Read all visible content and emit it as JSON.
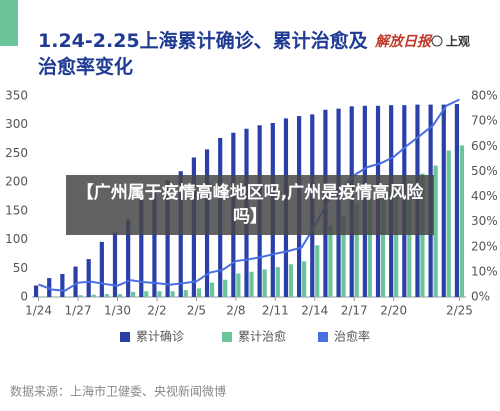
{
  "chart_data": {
    "type": "bar_line",
    "title": "1.24-2.25上海累计确诊、累计治愈及治愈率变化",
    "logos": [
      "解放日报",
      "上观"
    ],
    "source": "数据来源：上海市卫健委、央视新闻微博",
    "categories": [
      "1/24",
      null,
      null,
      "1/27",
      null,
      null,
      "1/30",
      null,
      null,
      "2/2",
      null,
      null,
      "2/5",
      null,
      null,
      "2/8",
      null,
      null,
      "2/11",
      null,
      null,
      "2/14",
      null,
      null,
      "2/17",
      null,
      null,
      "2/20",
      null,
      null,
      null,
      null,
      "2/25"
    ],
    "series": [
      {
        "name": "累计确诊",
        "color": "#2b3fa8",
        "type": "bar",
        "values": [
          20,
          33,
          40,
          53,
          66,
          96,
          112,
          135,
          169,
          182,
          203,
          219,
          243,
          257,
          277,
          286,
          293,
          299,
          303,
          311,
          315,
          318,
          326,
          328,
          332,
          333,
          333,
          334,
          334,
          335,
          335,
          335,
          336
        ]
      },
      {
        "name": "累计治愈",
        "color": "#6cc59a",
        "type": "bar",
        "values": [
          1,
          1,
          1,
          3,
          4,
          5,
          5,
          9,
          10,
          10,
          10,
          12,
          15,
          25,
          30,
          41,
          44,
          48,
          52,
          57,
          62,
          90,
          124,
          141,
          161,
          172,
          177,
          186,
          201,
          215,
          229,
          255,
          264
        ]
      },
      {
        "name": "治愈率",
        "color": "#4a6fe3",
        "type": "line",
        "axis": "y2",
        "values": [
          5,
          3,
          2.5,
          5.7,
          6.1,
          5.2,
          4.5,
          6.7,
          5.9,
          5.5,
          4.9,
          5.5,
          6.2,
          9.7,
          10.8,
          14.3,
          15,
          16,
          17.2,
          18.3,
          19.7,
          28.3,
          38,
          43,
          48.5,
          51.7,
          53.2,
          55.7,
          60.2,
          64.2,
          68.4,
          76.1,
          78.6
        ]
      }
    ],
    "ylim": [
      0,
      350
    ],
    "yticks": [
      0,
      50,
      100,
      150,
      200,
      250,
      300,
      350
    ],
    "y2lim": [
      0,
      80
    ],
    "y2ticks": [
      {
        "value": 0,
        "label": "0%"
      },
      {
        "value": 10,
        "label": "10%"
      },
      {
        "value": 20,
        "label": "20%"
      },
      {
        "value": 30,
        "label": "30%"
      },
      {
        "value": 40,
        "label": "40%"
      },
      {
        "value": 50,
        "label": "50%"
      },
      {
        "value": 60,
        "label": "60%"
      },
      {
        "value": 70,
        "label": "70%"
      },
      {
        "value": 80,
        "label": "80%"
      }
    ],
    "grid": false,
    "legend": "bottom"
  },
  "banner": "【广州属于疫情高峰地区吗,广州是疫情高风险吗】"
}
